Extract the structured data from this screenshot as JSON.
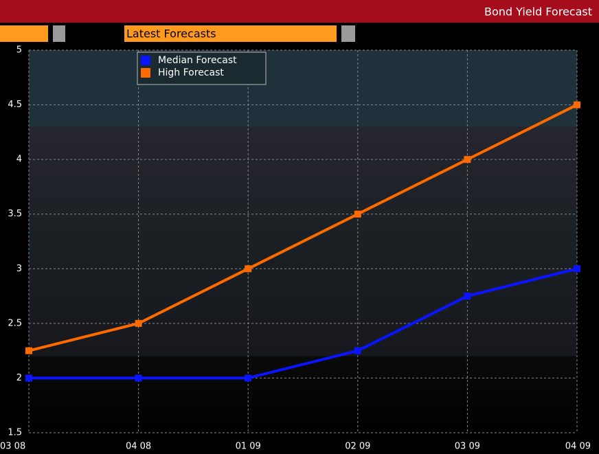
{
  "header": {
    "title": "Bond Yield Forecast"
  },
  "toolbar": {
    "tab": "Latest Forecasts"
  },
  "chart_data": {
    "type": "line",
    "categories": [
      "03 08",
      "04 08",
      "01 09",
      "02 09",
      "03 09",
      "04 09"
    ],
    "series": [
      {
        "name": "Median Forecast",
        "color": "#0a14ff",
        "values": [
          2,
          2,
          2,
          2.25,
          2.75,
          3
        ]
      },
      {
        "name": "High Forecast",
        "color": "#ff6a00",
        "values": [
          2.25,
          2.5,
          3,
          3.5,
          4,
          4.5
        ]
      }
    ],
    "ylim": [
      1.5,
      5
    ],
    "yticks": [
      1.5,
      2,
      2.5,
      3,
      3.5,
      4,
      4.5,
      5
    ],
    "grid": true,
    "legend": "top-left"
  }
}
